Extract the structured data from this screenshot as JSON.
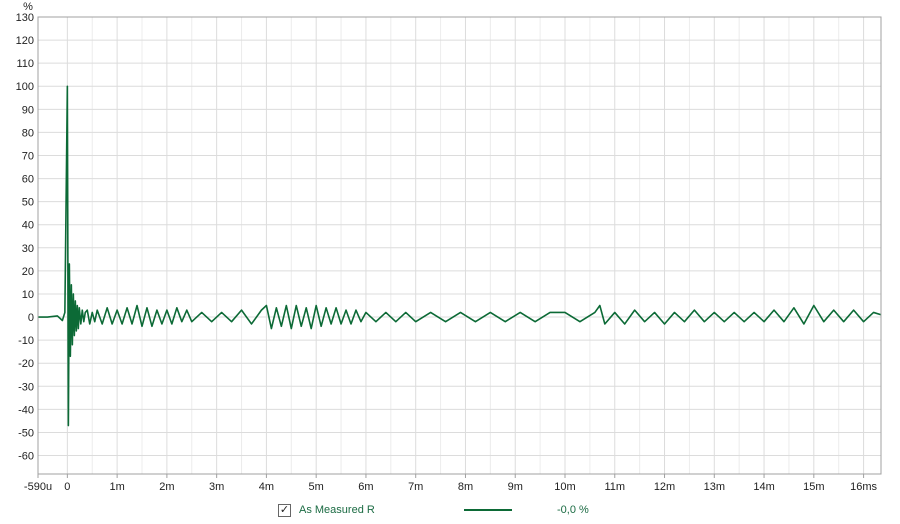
{
  "chart_data": {
    "type": "line",
    "ylabel": "%",
    "xlabel": "",
    "xlim": [
      -0.59,
      16.35
    ],
    "ylim": [
      -68,
      130
    ],
    "grid": true,
    "y_ticks": [
      130,
      120,
      110,
      100,
      90,
      80,
      70,
      60,
      50,
      40,
      30,
      20,
      10,
      0,
      -10,
      -20,
      -30,
      -40,
      -50,
      -60
    ],
    "y_tick_labels": [
      "130",
      "120",
      "110",
      "100",
      "90",
      "80",
      "70",
      "60",
      "50",
      "40",
      "30",
      "20",
      "10",
      "0",
      "-10",
      "-20",
      "-30",
      "-40",
      "-50",
      "-60"
    ],
    "x_ticks": [
      -0.59,
      0,
      1,
      2,
      3,
      4,
      5,
      6,
      7,
      8,
      9,
      10,
      11,
      12,
      13,
      14,
      15,
      16
    ],
    "x_tick_labels": [
      "-590u",
      "0",
      "1m",
      "2m",
      "3m",
      "4m",
      "5m",
      "6m",
      "7m",
      "8m",
      "9m",
      "10m",
      "11m",
      "12m",
      "13m",
      "14m",
      "15m",
      "16ms"
    ],
    "series": [
      {
        "name": "As Measured R",
        "color": "#0c6a36",
        "x": [
          -0.59,
          -0.4,
          -0.2,
          -0.1,
          -0.05,
          0,
          0.02,
          0.04,
          0.06,
          0.08,
          0.1,
          0.12,
          0.14,
          0.16,
          0.18,
          0.2,
          0.22,
          0.24,
          0.27,
          0.3,
          0.33,
          0.36,
          0.4,
          0.45,
          0.5,
          0.55,
          0.6,
          0.7,
          0.8,
          0.9,
          1.0,
          1.1,
          1.2,
          1.3,
          1.4,
          1.5,
          1.6,
          1.7,
          1.8,
          1.9,
          2.0,
          2.1,
          2.2,
          2.3,
          2.4,
          2.5,
          2.7,
          2.9,
          3.1,
          3.3,
          3.5,
          3.7,
          3.9,
          4.0,
          4.1,
          4.2,
          4.3,
          4.4,
          4.5,
          4.6,
          4.7,
          4.8,
          4.9,
          5.0,
          5.1,
          5.2,
          5.3,
          5.4,
          5.5,
          5.6,
          5.7,
          5.8,
          5.9,
          6.0,
          6.2,
          6.4,
          6.6,
          6.8,
          7.0,
          7.3,
          7.6,
          7.9,
          8.2,
          8.5,
          8.8,
          9.1,
          9.4,
          9.7,
          10.0,
          10.3,
          10.6,
          10.7,
          10.8,
          11.0,
          11.2,
          11.4,
          11.6,
          11.8,
          12.0,
          12.2,
          12.4,
          12.6,
          12.8,
          13.0,
          13.2,
          13.4,
          13.6,
          13.8,
          14.0,
          14.2,
          14.4,
          14.6,
          14.8,
          15.0,
          15.2,
          15.4,
          15.6,
          15.8,
          16.0,
          16.2,
          16.35
        ],
        "y": [
          0,
          0,
          0.5,
          -1.5,
          2,
          100,
          -47,
          23,
          -17,
          14,
          -12,
          10,
          -8,
          7,
          -6,
          5,
          -5,
          4,
          -3,
          3,
          -2,
          2,
          3,
          -3,
          2,
          -2,
          3,
          -3,
          4,
          -3,
          3,
          -3,
          4,
          -3,
          5,
          -4,
          4,
          -4,
          3,
          -3,
          3,
          -3,
          4,
          -2,
          3,
          -2,
          2,
          -2,
          2,
          -2,
          3,
          -3,
          3,
          5,
          -5,
          4,
          -4,
          5,
          -5,
          5,
          -4,
          4,
          -5,
          5,
          -4,
          4,
          -3,
          4,
          -3,
          3,
          -3,
          3,
          -2,
          2,
          -2,
          2,
          -2,
          2,
          -2,
          2,
          -2,
          2,
          -2,
          2,
          -2,
          2,
          -2,
          2,
          2,
          -2,
          2,
          5,
          -3,
          2,
          -3,
          3,
          -2,
          2,
          -3,
          2,
          -2,
          3,
          -2,
          2,
          -2,
          2,
          -2,
          2,
          -2,
          3,
          -2,
          4,
          -3,
          5,
          -2,
          3,
          -2,
          3,
          -2,
          2,
          1
        ]
      }
    ]
  },
  "legend": {
    "checked_glyph": "✓",
    "series_name": "As Measured R",
    "value_text": "-0,0 %",
    "line_color": "#0c6a36"
  },
  "colors": {
    "grid": "#dcdcdc",
    "axis": "#a0a0a0",
    "trace": "#0c6a36",
    "text": "#222222"
  }
}
